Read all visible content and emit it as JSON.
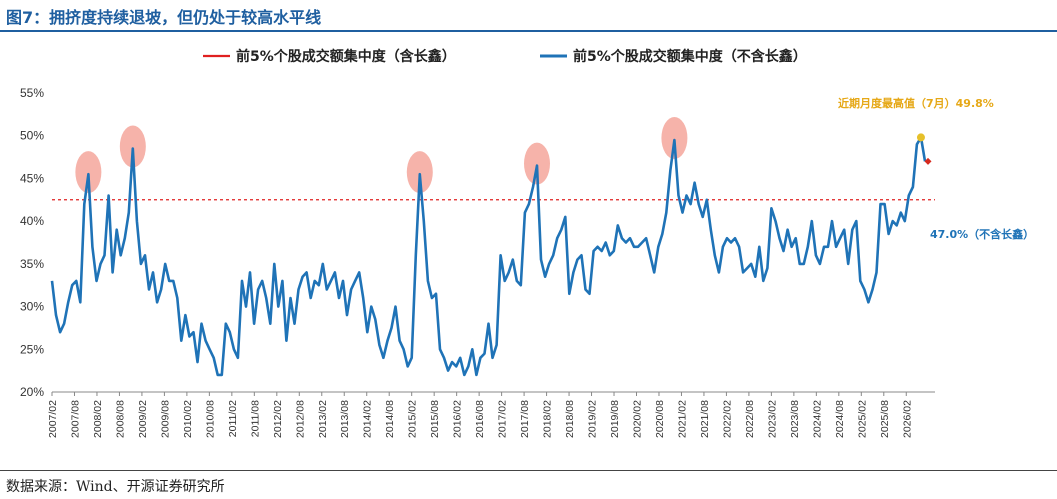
{
  "header": {
    "title": "图7：拥挤度持续退坡，但仍处于较高水平线",
    "source": "数据来源：Wind、开源证券研究所"
  },
  "colors": {
    "brand": "#1f5fa0",
    "line": "#1f73b7",
    "dashed": "#e02020",
    "highlight": "#f4a69b",
    "peak": "#e6c02a",
    "last": "#d62a1e"
  },
  "chart_data": {
    "type": "line",
    "legend_position": "top",
    "grid": false,
    "ylim": [
      20,
      55
    ],
    "yticks": [
      "20%",
      "25%",
      "30%",
      "35%",
      "40%",
      "45%",
      "50%",
      "55%"
    ],
    "xticks": [
      "2007/02",
      "2007/08",
      "2008/02",
      "2008/08",
      "2009/02",
      "2009/08",
      "2010/02",
      "2010/08",
      "2011/02",
      "2011/08",
      "2012/02",
      "2012/08",
      "2013/02",
      "2013/08",
      "2014/02",
      "2014/08",
      "2015/02",
      "2015/08",
      "2016/02",
      "2016/08",
      "2017/02",
      "2017/08",
      "2018/02",
      "2018/08",
      "2019/02",
      "2019/08",
      "2020/02",
      "2020/08",
      "2021/02",
      "2021/08",
      "2022/02",
      "2022/08",
      "2023/02",
      "2023/08",
      "2024/02",
      "2024/08",
      "2025/02",
      "2025/08",
      "2026/02"
    ],
    "series": [
      {
        "name": "前5%个股成交额集中度（含长鑫）",
        "style": "dashed",
        "values": [
          42.5
        ]
      },
      {
        "name": "前5%个股成交额集中度（不含长鑫）",
        "style": "solid",
        "values": [
          33,
          29,
          27,
          28,
          30.5,
          32.5,
          33,
          30.5,
          42,
          45.5,
          37,
          33,
          35,
          36,
          43,
          34,
          39,
          36,
          38,
          41,
          48.5,
          40,
          35,
          36,
          32,
          34,
          30.5,
          32,
          35,
          33,
          33,
          31,
          26,
          29,
          26.5,
          27,
          23.5,
          28,
          26,
          25,
          24,
          22,
          22,
          28,
          27,
          25,
          24,
          33,
          30,
          34,
          28,
          32,
          33,
          31,
          28,
          35,
          30,
          33,
          26,
          31,
          28,
          32,
          33.5,
          34,
          31,
          33,
          32.5,
          35,
          32,
          33,
          34,
          31,
          33,
          29,
          32,
          33,
          34,
          31,
          27,
          30,
          28.5,
          25.5,
          24,
          26,
          27.5,
          30,
          26,
          25,
          23,
          24,
          36,
          45.5,
          40,
          33,
          31,
          31.5,
          25,
          24,
          22.5,
          23.5,
          23,
          24,
          22,
          23,
          25,
          22,
          24,
          24.5,
          28,
          24,
          25.5,
          36,
          33,
          34,
          35.5,
          33,
          32.5,
          41,
          42,
          44,
          46.5,
          35.5,
          33.5,
          35,
          36,
          38,
          39,
          40.5,
          31.5,
          34,
          35.5,
          36,
          32,
          31.5,
          36.5,
          37,
          36.5,
          37.5,
          36,
          36.5,
          39.5,
          38,
          37.5,
          38,
          37,
          37,
          37.5,
          38,
          36,
          34,
          37,
          38.5,
          41,
          46,
          49.5,
          43,
          41,
          43,
          42,
          44.5,
          42,
          40.5,
          42.5,
          39,
          36,
          34,
          37,
          38,
          37.5,
          38,
          37,
          34,
          34.5,
          35,
          33.5,
          37,
          33,
          34.5,
          41.5,
          40,
          38,
          36.5,
          39,
          37,
          38,
          35,
          35,
          37,
          40,
          36,
          35,
          37,
          37,
          40,
          37,
          38,
          39,
          35,
          39,
          40,
          33,
          32,
          30.5,
          32,
          34,
          42,
          42,
          38.5,
          40,
          39.5,
          41,
          40,
          43,
          44,
          49,
          49.8,
          47
        ]
      }
    ],
    "annotations": [
      {
        "text": "近期月度最高值（7月）49.8%",
        "color": "#e6a817"
      },
      {
        "text": "47.0%（不含长鑫）",
        "color": "#1f73b7"
      }
    ],
    "highlight_peaks": [
      "2007/10",
      "2008/11",
      "2015/06",
      "2018/01",
      "2021/02"
    ]
  }
}
